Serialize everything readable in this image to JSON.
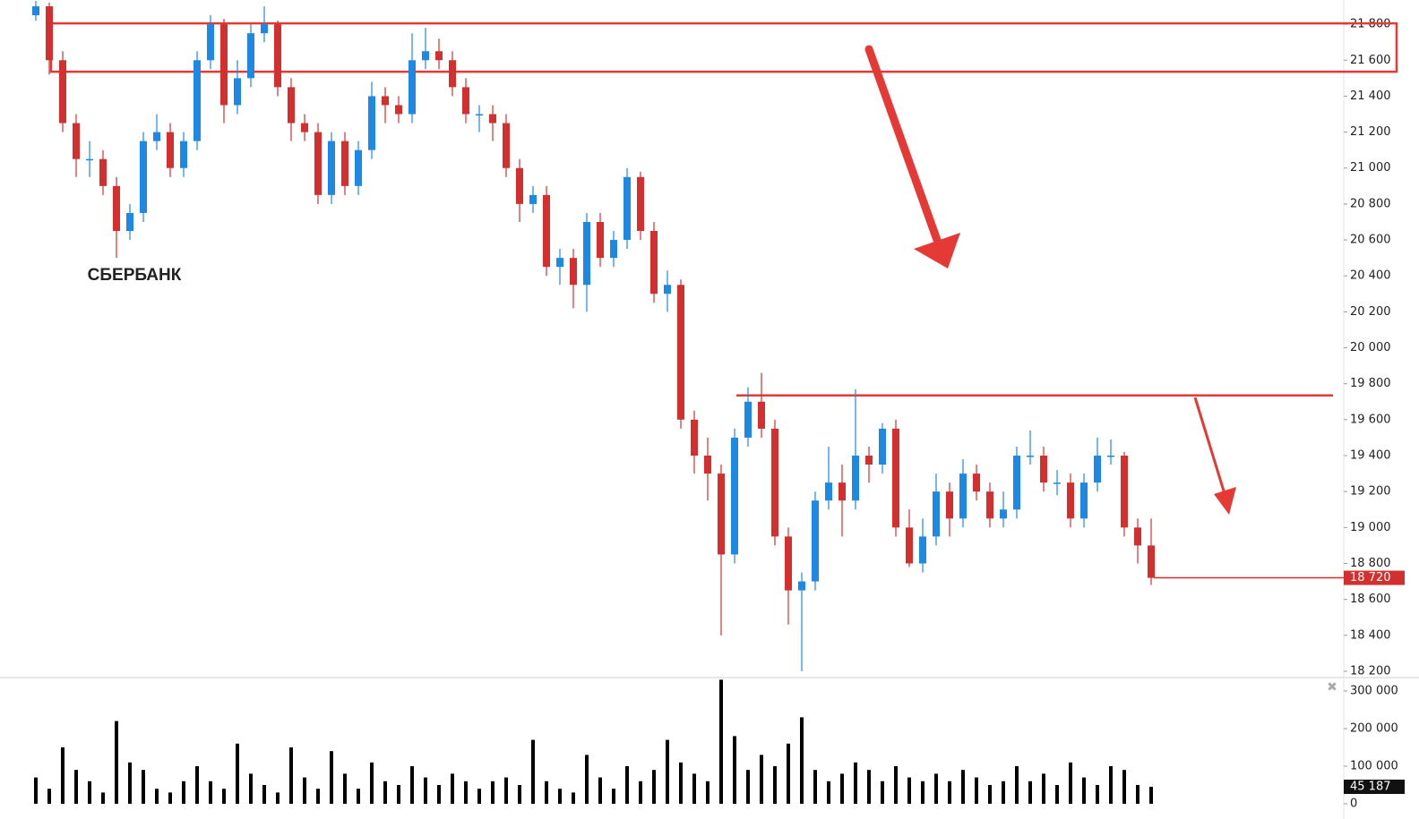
{
  "chart_data": {
    "type": "candlestick",
    "title": "СБЕРБАНК",
    "up_color": "#1e88e5",
    "down_color": "#d32f2f",
    "volume_color": "#000000",
    "open": [
      21850,
      21900,
      21600,
      21250,
      21050,
      21050,
      20900,
      20650,
      20750,
      21150,
      21200,
      21000,
      21150,
      21600,
      21800,
      21350,
      21500,
      21750,
      21800,
      21450,
      21250,
      21200,
      20850,
      21150,
      20900,
      21100,
      21400,
      21350,
      21300,
      21600,
      21650,
      21600,
      21450,
      21300,
      21300,
      21250,
      21000,
      20800,
      20850,
      20450,
      20500,
      20350,
      20700,
      20500,
      20600,
      20950,
      20650,
      20300,
      20350,
      19600,
      19400,
      19300,
      18850,
      19500,
      19700,
      19550,
      18950,
      18650,
      18700,
      19150,
      19250,
      19150,
      19400,
      19350,
      19550,
      19000,
      18800,
      18950,
      19200,
      19050,
      19300,
      19200,
      19050,
      19100,
      19400,
      19400,
      19250,
      19250,
      19050,
      19250,
      19400,
      19400,
      19000,
      18900
    ],
    "high": [
      21930,
      21920,
      21650,
      21300,
      21150,
      21100,
      20950,
      20800,
      21200,
      21300,
      21250,
      21200,
      21650,
      21850,
      21830,
      21600,
      21800,
      21900,
      21820,
      21500,
      21300,
      21250,
      21200,
      21200,
      21150,
      21480,
      21450,
      21400,
      21750,
      21780,
      21720,
      21650,
      21500,
      21350,
      21350,
      21300,
      21050,
      20900,
      20900,
      20550,
      20550,
      20750,
      20750,
      20650,
      21000,
      20980,
      20700,
      20430,
      20380,
      19650,
      19500,
      19350,
      19550,
      19780,
      19860,
      19600,
      19000,
      18750,
      19200,
      19450,
      19350,
      19770,
      19450,
      19580,
      19600,
      19100,
      19050,
      19300,
      19250,
      19380,
      19350,
      19250,
      19200,
      19450,
      19540,
      19450,
      19320,
      19300,
      19300,
      19500,
      19490,
      19420,
      19050,
      19050
    ],
    "low": [
      21820,
      21520,
      21200,
      20950,
      20950,
      20850,
      20500,
      20600,
      20700,
      21100,
      20950,
      20950,
      21100,
      21550,
      21250,
      21300,
      21450,
      21700,
      21400,
      21150,
      21150,
      20800,
      20800,
      20850,
      20850,
      21050,
      21250,
      21250,
      21250,
      21550,
      21550,
      21400,
      21250,
      21200,
      21150,
      20950,
      20700,
      20750,
      20400,
      20350,
      20220,
      20200,
      20450,
      20450,
      20550,
      20600,
      20250,
      20200,
      19550,
      19300,
      19150,
      18400,
      18800,
      19450,
      19500,
      18900,
      18460,
      18200,
      18650,
      19100,
      18950,
      19100,
      19250,
      19300,
      18950,
      18780,
      18750,
      18900,
      18950,
      19000,
      19150,
      19000,
      19000,
      19050,
      19350,
      19200,
      19180,
      19000,
      19000,
      19200,
      19350,
      18950,
      18800,
      18680
    ],
    "close": [
      21900,
      21600,
      21250,
      21050,
      21050,
      20900,
      20650,
      20750,
      21150,
      21200,
      21000,
      21150,
      21600,
      21800,
      21350,
      21500,
      21750,
      21800,
      21450,
      21250,
      21200,
      20850,
      21150,
      20900,
      21100,
      21400,
      21350,
      21300,
      21600,
      21650,
      21600,
      21450,
      21300,
      21300,
      21250,
      21000,
      20800,
      20850,
      20450,
      20500,
      20350,
      20700,
      20500,
      20600,
      20950,
      20650,
      20300,
      20350,
      19600,
      19400,
      19300,
      18850,
      19500,
      19700,
      19550,
      18950,
      18650,
      18700,
      19150,
      19250,
      19150,
      19400,
      19350,
      19550,
      19000,
      18800,
      18950,
      19200,
      19050,
      19300,
      19200,
      19050,
      19100,
      19400,
      19400,
      19250,
      19250,
      19050,
      19250,
      19400,
      19400,
      19000,
      18900,
      18720
    ],
    "volume": [
      70000,
      40000,
      150000,
      90000,
      60000,
      30000,
      220000,
      110000,
      90000,
      40000,
      30000,
      60000,
      100000,
      60000,
      40000,
      160000,
      80000,
      50000,
      30000,
      150000,
      70000,
      40000,
      140000,
      80000,
      40000,
      110000,
      60000,
      50000,
      100000,
      70000,
      50000,
      80000,
      60000,
      40000,
      60000,
      70000,
      50000,
      170000,
      60000,
      40000,
      30000,
      130000,
      70000,
      40000,
      100000,
      60000,
      90000,
      170000,
      110000,
      80000,
      60000,
      330000,
      180000,
      90000,
      130000,
      100000,
      160000,
      230000,
      90000,
      60000,
      80000,
      110000,
      90000,
      60000,
      100000,
      70000,
      60000,
      80000,
      60000,
      90000,
      70000,
      50000,
      60000,
      100000,
      60000,
      80000,
      50000,
      110000,
      70000,
      50000,
      100000,
      90000,
      50000,
      45187
    ],
    "ylim": [
      18165,
      21935
    ],
    "yticks": [
      {
        "value": 18200,
        "label": "18 200"
      },
      {
        "value": 18400,
        "label": "18 400"
      },
      {
        "value": 18600,
        "label": "18 600"
      },
      {
        "value": 18800,
        "label": "18 800"
      },
      {
        "value": 19000,
        "label": "19 000"
      },
      {
        "value": 19200,
        "label": "19 200"
      },
      {
        "value": 19400,
        "label": "19 400"
      },
      {
        "value": 19600,
        "label": "19 600"
      },
      {
        "value": 19800,
        "label": "19 800"
      },
      {
        "value": 20000,
        "label": "20 000"
      },
      {
        "value": 20200,
        "label": "20 200"
      },
      {
        "value": 20400,
        "label": "20 400"
      },
      {
        "value": 20600,
        "label": "20 600"
      },
      {
        "value": 20800,
        "label": "20 800"
      },
      {
        "value": 21000,
        "label": "21 000"
      },
      {
        "value": 21200,
        "label": "21 200"
      },
      {
        "value": 21400,
        "label": "21 400"
      },
      {
        "value": 21600,
        "label": "21 600"
      },
      {
        "value": 21800,
        "label": "21 800"
      }
    ],
    "y2lim": [
      -16667,
      333333
    ],
    "y2ticks": [
      0,
      {
        "value": 100000,
        "label": "100 000"
      },
      {
        "value": 200000,
        "label": "200 000"
      },
      {
        "value": 300000,
        "label": "300 000"
      }
    ],
    "last_price": {
      "value": 18720,
      "label": "18 720"
    },
    "last_volume": {
      "value": 45187,
      "label": "45 187"
    },
    "zone": [
      21536,
      21805
    ],
    "level": 19735,
    "annotation_color": "#e53935"
  }
}
